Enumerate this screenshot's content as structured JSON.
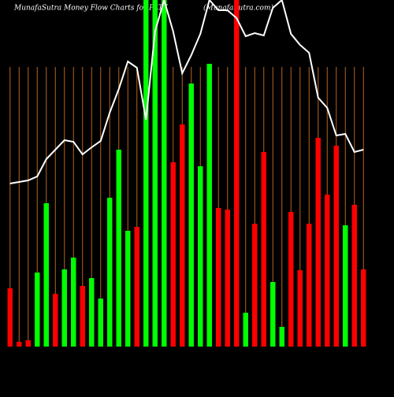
{
  "chart_data": {
    "type": "bar",
    "title": "MunafaSutra  Money Flow  Charts for PLTZ",
    "subtitle": "(MunafaSutra.com)",
    "categories": [
      null,
      null,
      null,
      null,
      null,
      null,
      null,
      null,
      null,
      null,
      null,
      null,
      null,
      null,
      null,
      null,
      null,
      null,
      null,
      null,
      null,
      null,
      null,
      null,
      null,
      null,
      null,
      null,
      null,
      null,
      null,
      null,
      null,
      null,
      null,
      null,
      null,
      null,
      null,
      null
    ],
    "values": [
      74,
      6,
      8,
      94,
      182,
      67,
      98,
      113,
      77,
      87,
      61,
      189,
      250,
      147,
      152,
      440,
      440,
      440,
      234,
      282,
      334,
      229,
      359,
      176,
      174,
      440,
      43,
      156,
      247,
      82,
      25,
      171,
      97,
      156,
      265,
      193,
      255,
      154,
      180,
      98
    ],
    "colors": [
      "#ff0000",
      "#ff0000",
      "#ff0000",
      "#00ff00",
      "#00ff00",
      "#ff0000",
      "#00ff00",
      "#00ff00",
      "#ff0000",
      "#00ff00",
      "#00ff00",
      "#00ff00",
      "#00ff00",
      "#00ff00",
      "#ff0000",
      "#00ff00",
      "#00ff00",
      "#00ff00",
      "#ff0000",
      "#ff0000",
      "#00ff00",
      "#00ff00",
      "#00ff00",
      "#ff0000",
      "#ff0000",
      "#ff0000",
      "#00ff00",
      "#ff0000",
      "#ff0000",
      "#00ff00",
      "#00ff00",
      "#ff0000",
      "#ff0000",
      "#ff0000",
      "#ff0000",
      "#ff0000",
      "#ff0000",
      "#00ff00",
      "#ff0000",
      "#ff0000"
    ],
    "line": {
      "color": "#ffffff",
      "values": [
        207,
        209,
        211,
        216,
        238,
        250,
        262,
        260,
        244,
        253,
        261,
        297,
        327,
        362,
        354,
        288,
        400,
        440,
        400,
        347,
        370,
        397,
        440,
        427,
        427,
        417,
        394,
        398,
        395,
        430,
        440,
        397,
        383,
        373,
        316,
        303,
        268,
        270,
        247,
        250
      ]
    },
    "ylim": [
      0,
      440
    ],
    "grid": true,
    "grid_color": "#b5651d",
    "background": "#000000"
  }
}
